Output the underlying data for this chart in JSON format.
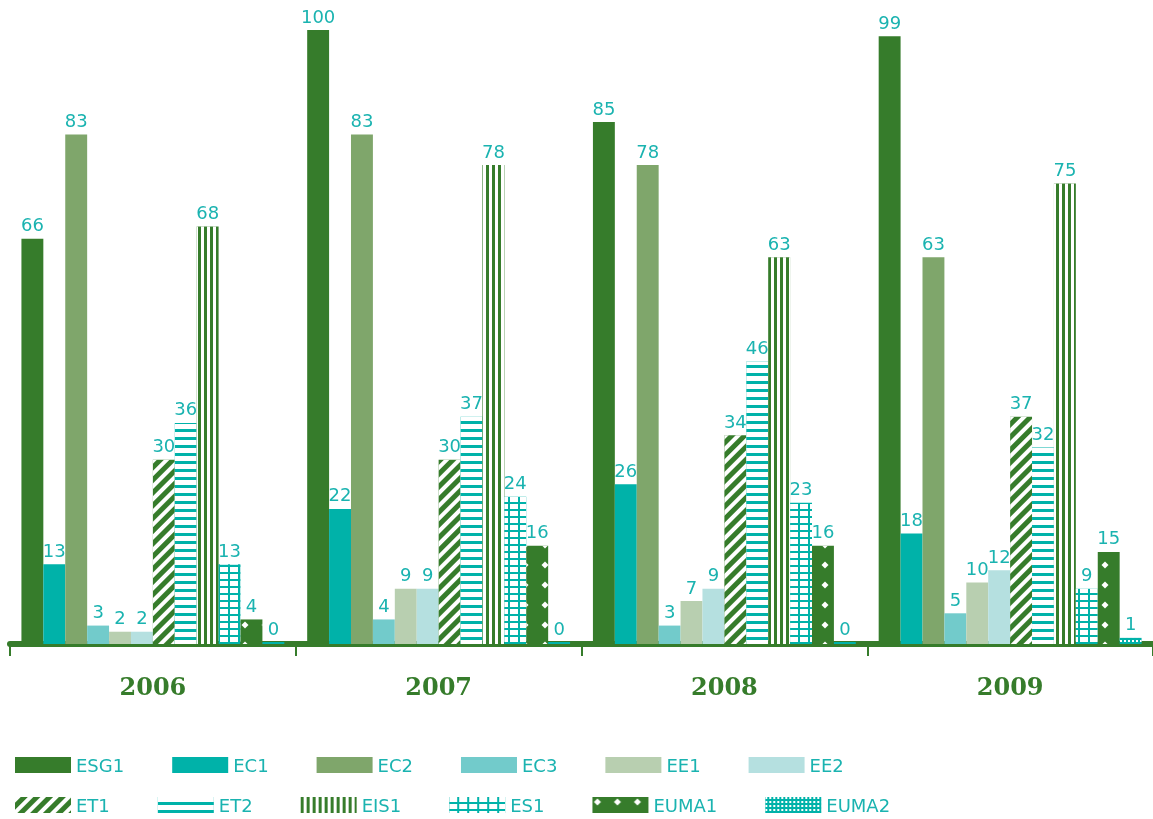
{
  "chart_data": {
    "type": "bar",
    "categories": [
      "2006",
      "2007",
      "2008",
      "2009"
    ],
    "series": [
      {
        "name": "ESG1",
        "color": "#367c2b",
        "values": [
          66,
          100,
          85,
          99
        ]
      },
      {
        "name": "EC1",
        "color": "#00b2a9",
        "values": [
          13,
          22,
          26,
          18
        ]
      },
      {
        "name": "EC2",
        "color": "#7fa66b",
        "values": [
          83,
          83,
          78,
          63
        ]
      },
      {
        "name": "EC3",
        "color": "#72cbcb",
        "values": [
          3,
          4,
          3,
          5
        ]
      },
      {
        "name": "EE1",
        "color": "#b8cfb0",
        "values": [
          2,
          9,
          7,
          10
        ]
      },
      {
        "name": "EE2",
        "color": "#b5e0e0",
        "values": [
          2,
          9,
          9,
          12
        ]
      },
      {
        "name": "ET1",
        "color": "#367c2b",
        "values": [
          30,
          30,
          34,
          37
        ]
      },
      {
        "name": "ET2",
        "color": "#00b2a9",
        "values": [
          36,
          37,
          46,
          32
        ]
      },
      {
        "name": "EIS1",
        "color": "#367c2b",
        "values": [
          68,
          78,
          63,
          75
        ]
      },
      {
        "name": "ES1",
        "color": "#00b2a9",
        "values": [
          13,
          24,
          23,
          9
        ]
      },
      {
        "name": "EUMA1",
        "color": "#367c2b",
        "values": [
          4,
          16,
          16,
          15
        ]
      },
      {
        "name": "EUMA2",
        "color": "#00b2a9",
        "values": [
          0,
          0,
          0,
          1
        ]
      }
    ],
    "data_labels": true,
    "legend": "bottom",
    "grid": false
  }
}
